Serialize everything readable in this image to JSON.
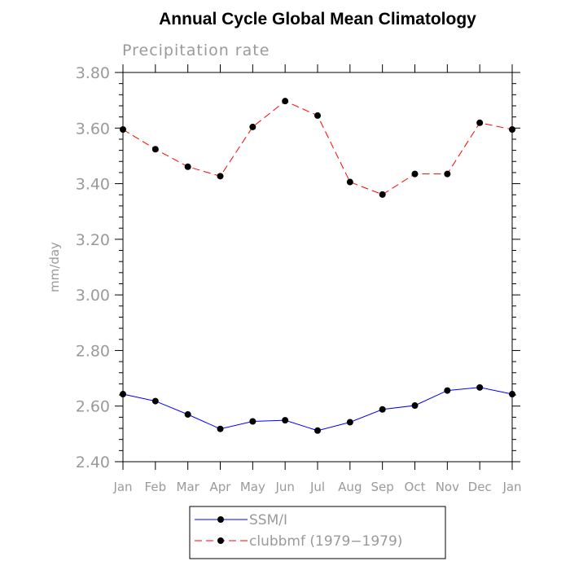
{
  "chart_data": {
    "type": "line",
    "title": "Annual Cycle Global Mean Climatology",
    "subtitle": "Precipitation rate",
    "xlabel": "",
    "ylabel": "mm/day",
    "categories": [
      "Jan",
      "Feb",
      "Mar",
      "Apr",
      "May",
      "Jun",
      "Jul",
      "Aug",
      "Sep",
      "Oct",
      "Nov",
      "Dec",
      "Jan"
    ],
    "ylim": [
      2.4,
      3.8
    ],
    "yticks": [
      "2.40",
      "2.60",
      "2.80",
      "3.00",
      "3.20",
      "3.40",
      "3.60",
      "3.80"
    ],
    "grid": false,
    "legend_position": "bottom",
    "series": [
      {
        "name": "SSM/I",
        "color": "#0000ff",
        "dash": "solid",
        "marker": "circle",
        "values": [
          2.643,
          2.618,
          2.57,
          2.518,
          2.545,
          2.549,
          2.512,
          2.542,
          2.588,
          2.602,
          2.656,
          2.667,
          2.643
        ]
      },
      {
        "name": "clubbmf (1979−1979)",
        "color": "#ff0000",
        "dash": "dashed",
        "marker": "circle",
        "values": [
          3.595,
          3.524,
          3.461,
          3.427,
          3.604,
          3.697,
          3.645,
          3.406,
          3.361,
          3.435,
          3.435,
          3.619,
          3.595
        ]
      }
    ]
  }
}
